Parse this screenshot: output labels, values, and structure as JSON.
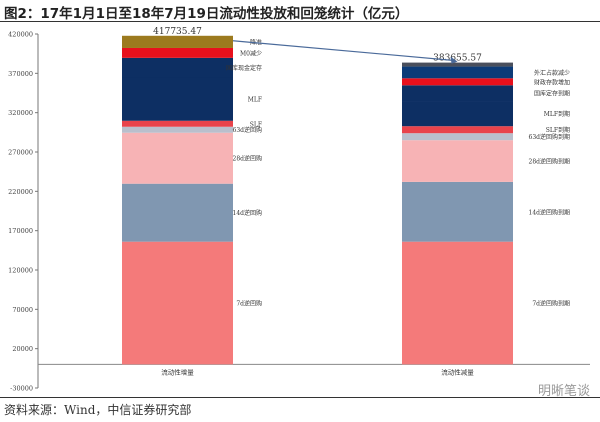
{
  "title": "图2：17年1月1日至18年7月19日流动性投放和回笼统计（亿元）",
  "source": "资料来源：Wind，中信证券研究部",
  "watermark": "明晰笔谈",
  "chart_data": {
    "type": "bar",
    "stacked": true,
    "title": "17年1月1日至18年7月19日流动性投放和回笼统计（亿元）",
    "ylim": [
      -30000,
      420000
    ],
    "yticks": [
      -30000,
      20000,
      70000,
      120000,
      170000,
      220000,
      270000,
      320000,
      370000,
      420000
    ],
    "categories": [
      "流动性增量",
      "流动性减量"
    ],
    "totals": [
      "417735.47",
      "383655.57"
    ],
    "total_values": [
      417735.47,
      383655.57
    ],
    "stacks": [
      {
        "category": "流动性增量",
        "segments": [
          {
            "name": "7d逆回购",
            "value": 156000,
            "color": "#f47a7a"
          },
          {
            "name": "14d逆回购",
            "value": 73700,
            "color": "#8097b1"
          },
          {
            "name": "28d逆回购",
            "value": 64800,
            "color": "#f7b3b5"
          },
          {
            "name": "63d逆回购",
            "value": 7600,
            "color": "#b9bfcc"
          },
          {
            "name": "SLF",
            "value": 7600,
            "color": "#e8434b"
          },
          {
            "name": "MLF",
            "value": 55000,
            "color": "#0d2f63"
          },
          {
            "name": "国库现金定存",
            "value": 25000,
            "color": "#0d2f63"
          },
          {
            "name": "M0减少",
            "value": 12535.47,
            "color": "#e8101c"
          },
          {
            "name": "降准",
            "value": 15500,
            "color": "#9c7a1e"
          }
        ]
      },
      {
        "category": "流动性减量",
        "segments": [
          {
            "name": "7d逆回购到期",
            "value": 156000,
            "color": "#f47a7a"
          },
          {
            "name": "14d逆回购到期",
            "value": 76000,
            "color": "#8097b1"
          },
          {
            "name": "28d逆回购到期",
            "value": 53000,
            "color": "#f7b3b5"
          },
          {
            "name": "63d逆回购到期",
            "value": 8900,
            "color": "#b9bfcc"
          },
          {
            "name": "SLF到期",
            "value": 8900,
            "color": "#e8434b"
          },
          {
            "name": "MLF到期",
            "value": 32000,
            "color": "#0d2f63"
          },
          {
            "name": "国库定存到期",
            "value": 20000,
            "color": "#0d2f63"
          },
          {
            "name": "财政存款增加",
            "value": 8900,
            "color": "#e8101c"
          },
          {
            "name": "外汇占款减少",
            "value": 14900,
            "color": "#0c3b78"
          },
          {
            "name": "",
            "value": 5055.57,
            "color": "#4a4f5c"
          }
        ]
      }
    ]
  }
}
